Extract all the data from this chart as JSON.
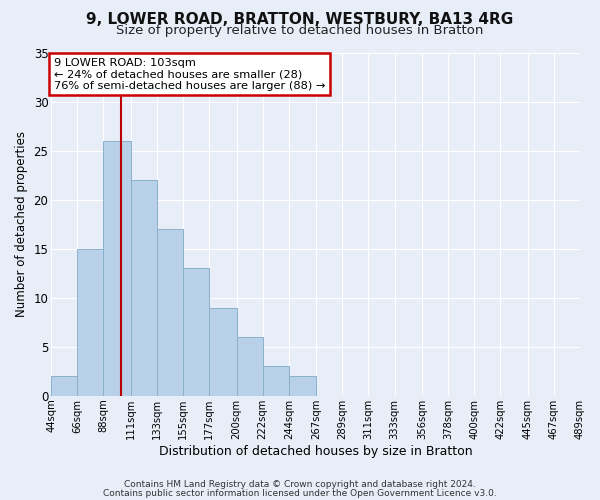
{
  "title1": "9, LOWER ROAD, BRATTON, WESTBURY, BA13 4RG",
  "title2": "Size of property relative to detached houses in Bratton",
  "xlabel": "Distribution of detached houses by size in Bratton",
  "ylabel": "Number of detached properties",
  "bar_values": [
    2,
    15,
    26,
    22,
    17,
    13,
    9,
    6,
    3,
    2,
    0,
    0,
    0,
    0,
    0,
    0,
    0,
    0,
    0,
    0
  ],
  "bar_labels": [
    "44sqm",
    "66sqm",
    "88sqm",
    "111sqm",
    "133sqm",
    "155sqm",
    "177sqm",
    "200sqm",
    "222sqm",
    "244sqm",
    "267sqm",
    "289sqm",
    "311sqm",
    "333sqm",
    "356sqm",
    "378sqm",
    "400sqm",
    "422sqm",
    "445sqm",
    "467sqm",
    "489sqm"
  ],
  "bin_edges": [
    44,
    66,
    88,
    111,
    133,
    155,
    177,
    200,
    222,
    244,
    267,
    289,
    311,
    333,
    356,
    378,
    400,
    422,
    445,
    467,
    489
  ],
  "bar_color": "#b8d0e8",
  "bar_edgecolor": "#8ab0cc",
  "vline_x": 103,
  "vline_color": "#bb0000",
  "ylim": [
    0,
    35
  ],
  "yticks": [
    0,
    5,
    10,
    15,
    20,
    25,
    30,
    35
  ],
  "annotation_title": "9 LOWER ROAD: 103sqm",
  "annotation_line1": "← 24% of detached houses are smaller (28)",
  "annotation_line2": "76% of semi-detached houses are larger (88) →",
  "annotation_box_color": "#ffffff",
  "annotation_box_edgecolor": "#cc0000",
  "footer1": "Contains HM Land Registry data © Crown copyright and database right 2024.",
  "footer2": "Contains public sector information licensed under the Open Government Licence v3.0.",
  "background_color": "#e8eef8",
  "grid_color": "#ffffff",
  "title1_fontsize": 11,
  "title2_fontsize": 9.5
}
